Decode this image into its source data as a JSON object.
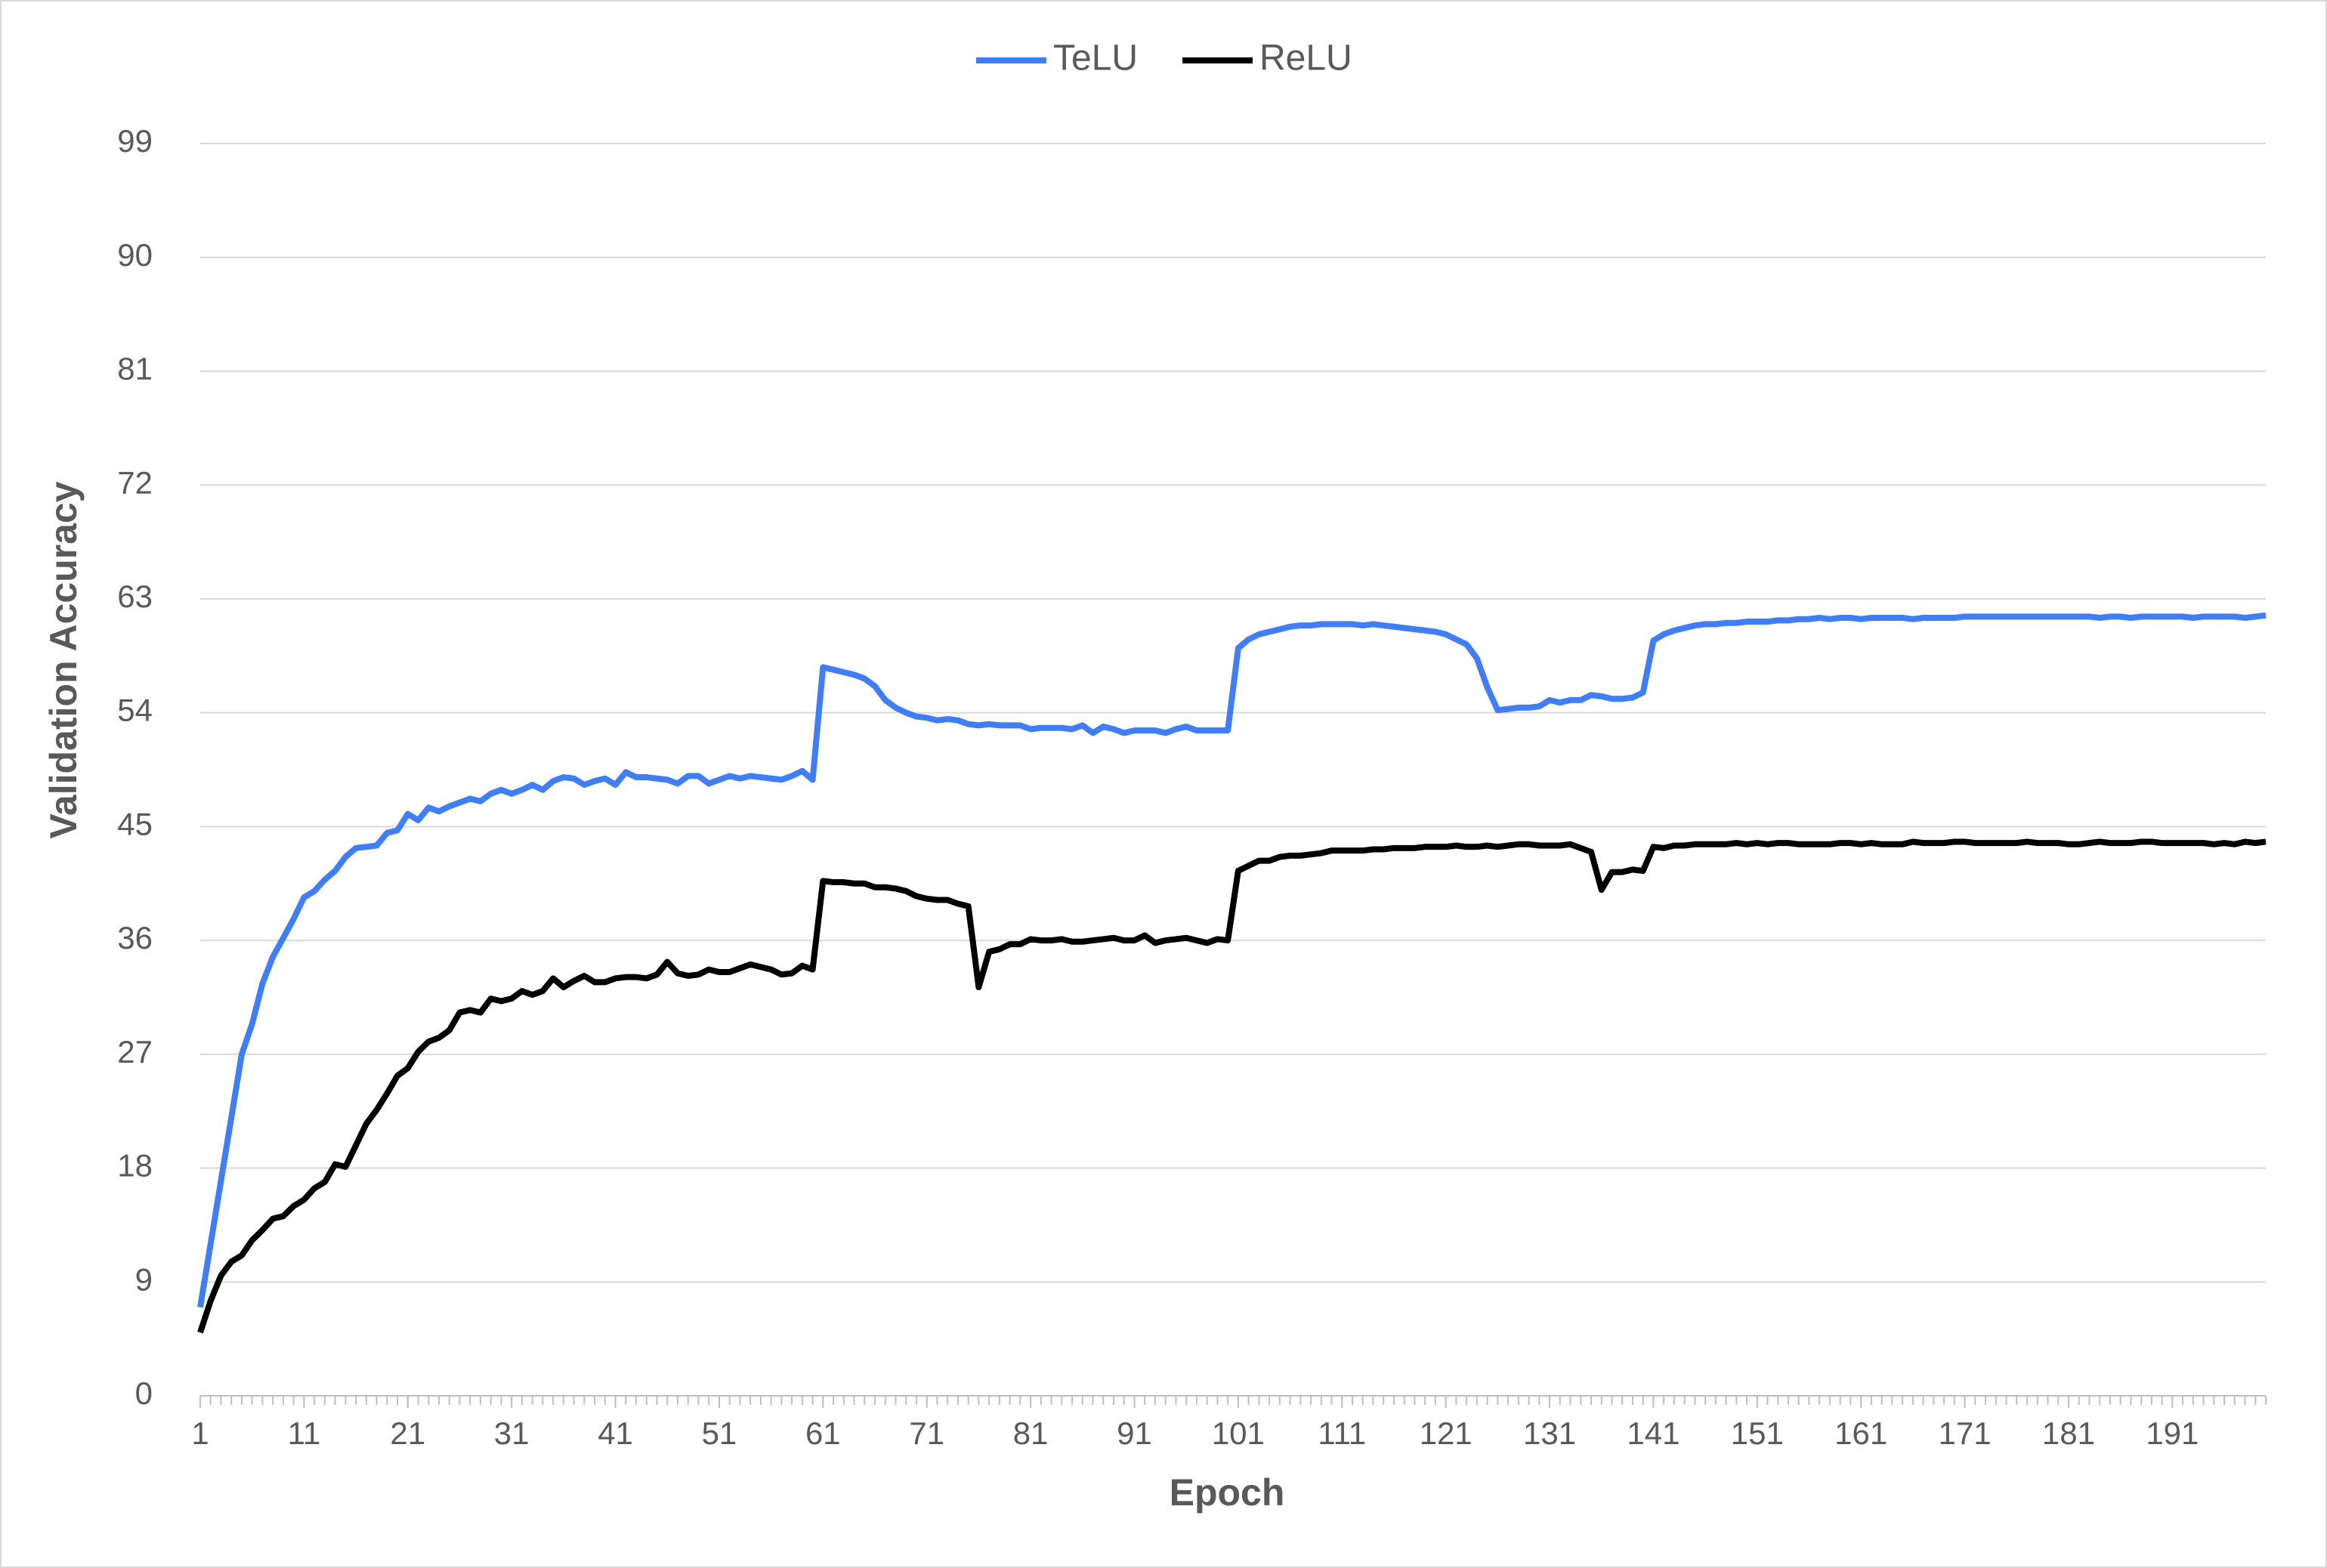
{
  "chart_data": {
    "type": "line",
    "xlabel": "Epoch",
    "ylabel": "Validation Accuracy",
    "x": [
      1,
      2,
      3,
      4,
      5,
      6,
      7,
      8,
      9,
      10,
      11,
      12,
      13,
      14,
      15,
      16,
      17,
      18,
      19,
      20,
      21,
      22,
      23,
      24,
      25,
      26,
      27,
      28,
      29,
      30,
      31,
      32,
      33,
      34,
      35,
      36,
      37,
      38,
      39,
      40,
      41,
      42,
      43,
      44,
      45,
      46,
      47,
      48,
      49,
      50,
      51,
      52,
      53,
      54,
      55,
      56,
      57,
      58,
      59,
      60,
      61,
      62,
      63,
      64,
      65,
      66,
      67,
      68,
      69,
      70,
      71,
      72,
      73,
      74,
      75,
      76,
      77,
      78,
      79,
      80,
      81,
      82,
      83,
      84,
      85,
      86,
      87,
      88,
      89,
      90,
      91,
      92,
      93,
      94,
      95,
      96,
      97,
      98,
      99,
      100,
      101,
      102,
      103,
      104,
      105,
      106,
      107,
      108,
      109,
      110,
      111,
      112,
      113,
      114,
      115,
      116,
      117,
      118,
      119,
      120,
      121,
      122,
      123,
      124,
      125,
      126,
      127,
      128,
      129,
      130,
      131,
      132,
      133,
      134,
      135,
      136,
      137,
      138,
      139,
      140,
      141,
      142,
      143,
      144,
      145,
      146,
      147,
      148,
      149,
      150,
      151,
      152,
      153,
      154,
      155,
      156,
      157,
      158,
      159,
      160,
      161,
      162,
      163,
      164,
      165,
      166,
      167,
      168,
      169,
      170,
      171,
      172,
      173,
      174,
      175,
      176,
      177,
      178,
      179,
      180,
      181,
      182,
      183,
      184,
      185,
      186,
      187,
      188,
      189,
      190,
      191,
      192,
      193,
      194,
      195,
      196,
      197,
      198,
      199,
      200
    ],
    "series": [
      {
        "name": "TeLU",
        "color": "#3f7ef7",
        "values": [
          7,
          12,
          17,
          22,
          27,
          29.4,
          32.6,
          34.7,
          36.2,
          37.7,
          39.4,
          39.9,
          40.8,
          41.5,
          42.6,
          43.3,
          43.4,
          43.5,
          44.5,
          44.7,
          46,
          45.5,
          46.5,
          46.2,
          46.6,
          46.9,
          47.2,
          47,
          47.6,
          47.9,
          47.6,
          47.9,
          48.3,
          47.9,
          48.6,
          48.9,
          48.8,
          48.3,
          48.6,
          48.8,
          48.3,
          49.3,
          48.9,
          48.9,
          48.8,
          48.7,
          48.4,
          49,
          49,
          48.4,
          48.7,
          49,
          48.8,
          49,
          48.9,
          48.8,
          48.7,
          49,
          49.4,
          48.7,
          57.6,
          57.4,
          57.2,
          57,
          56.7,
          56.1,
          55,
          54.4,
          54,
          53.7,
          53.6,
          53.4,
          53.5,
          53.4,
          53.1,
          53,
          53.1,
          53,
          53,
          53,
          52.7,
          52.8,
          52.8,
          52.8,
          52.7,
          53,
          52.4,
          52.9,
          52.7,
          52.4,
          52.6,
          52.6,
          52.6,
          52.4,
          52.7,
          52.9,
          52.6,
          52.6,
          52.6,
          52.6,
          59.1,
          59.8,
          60.2,
          60.4,
          60.6,
          60.8,
          60.9,
          60.9,
          61,
          61,
          61,
          61,
          60.9,
          61,
          60.9,
          60.8,
          60.7,
          60.6,
          60.5,
          60.4,
          60.2,
          59.8,
          59.4,
          58.3,
          56,
          54.2,
          54.3,
          54.4,
          54.4,
          54.5,
          55,
          54.8,
          55,
          55,
          55.4,
          55.3,
          55.1,
          55.1,
          55.2,
          55.6,
          59.7,
          60.2,
          60.5,
          60.7,
          60.9,
          61,
          61,
          61.1,
          61.1,
          61.2,
          61.2,
          61.2,
          61.3,
          61.3,
          61.4,
          61.4,
          61.5,
          61.4,
          61.5,
          61.5,
          61.4,
          61.5,
          61.5,
          61.5,
          61.5,
          61.4,
          61.5,
          61.5,
          61.5,
          61.5,
          61.6,
          61.6,
          61.6,
          61.6,
          61.6,
          61.6,
          61.6,
          61.6,
          61.6,
          61.6,
          61.6,
          61.6,
          61.6,
          61.5,
          61.6,
          61.6,
          61.5,
          61.6,
          61.6,
          61.6,
          61.6,
          61.6,
          61.5,
          61.6,
          61.6,
          61.6,
          61.6,
          61.5,
          61.6,
          61.7
        ]
      },
      {
        "name": "ReLU",
        "color": "#000000",
        "values": [
          5,
          7.5,
          9.5,
          10.6,
          11.1,
          12.3,
          13.1,
          14,
          14.2,
          15,
          15.5,
          16.4,
          16.9,
          18.3,
          18.1,
          19.8,
          21.5,
          22.6,
          23.9,
          25.3,
          25.9,
          27.2,
          28,
          28.3,
          28.9,
          30.3,
          30.5,
          30.3,
          31.4,
          31.2,
          31.4,
          32,
          31.7,
          32,
          33,
          32.3,
          32.8,
          33.2,
          32.7,
          32.7,
          33,
          33.1,
          33.1,
          33,
          33.3,
          34.3,
          33.4,
          33.2,
          33.3,
          33.7,
          33.5,
          33.5,
          33.8,
          34.1,
          33.9,
          33.7,
          33.3,
          33.4,
          34,
          33.7,
          40.7,
          40.6,
          40.6,
          40.5,
          40.5,
          40.2,
          40.2,
          40.1,
          39.9,
          39.5,
          39.3,
          39.2,
          39.2,
          38.9,
          38.7,
          32.3,
          35.1,
          35.3,
          35.7,
          35.7,
          36.1,
          36,
          36,
          36.1,
          35.9,
          35.9,
          36,
          36.1,
          36.2,
          36,
          36,
          36.4,
          35.8,
          36,
          36.1,
          36.2,
          36,
          35.8,
          36.1,
          36,
          41.5,
          41.9,
          42.3,
          42.3,
          42.6,
          42.7,
          42.7,
          42.8,
          42.9,
          43.1,
          43.1,
          43.1,
          43.1,
          43.2,
          43.2,
          43.3,
          43.3,
          43.3,
          43.4,
          43.4,
          43.4,
          43.5,
          43.4,
          43.4,
          43.5,
          43.4,
          43.5,
          43.6,
          43.6,
          43.5,
          43.5,
          43.5,
          43.6,
          43.3,
          43,
          40,
          41.4,
          41.4,
          41.6,
          41.5,
          43.4,
          43.3,
          43.5,
          43.5,
          43.6,
          43.6,
          43.6,
          43.6,
          43.7,
          43.6,
          43.7,
          43.6,
          43.7,
          43.7,
          43.6,
          43.6,
          43.6,
          43.6,
          43.7,
          43.7,
          43.6,
          43.7,
          43.6,
          43.6,
          43.6,
          43.8,
          43.7,
          43.7,
          43.7,
          43.8,
          43.8,
          43.7,
          43.7,
          43.7,
          43.7,
          43.7,
          43.8,
          43.7,
          43.7,
          43.7,
          43.6,
          43.6,
          43.7,
          43.8,
          43.7,
          43.7,
          43.7,
          43.8,
          43.8,
          43.7,
          43.7,
          43.7,
          43.7,
          43.7,
          43.6,
          43.7,
          43.6,
          43.8,
          43.7,
          43.8
        ]
      }
    ],
    "xlim": [
      1,
      200
    ],
    "xticks": [
      1,
      11,
      21,
      31,
      41,
      51,
      61,
      71,
      81,
      91,
      101,
      111,
      121,
      131,
      141,
      151,
      161,
      171,
      181,
      191
    ],
    "ylim": [
      0,
      99
    ],
    "yticks": [
      0,
      9,
      18,
      27,
      36,
      45,
      54,
      63,
      72,
      81,
      90,
      99
    ],
    "grid": true,
    "legend": "top"
  }
}
